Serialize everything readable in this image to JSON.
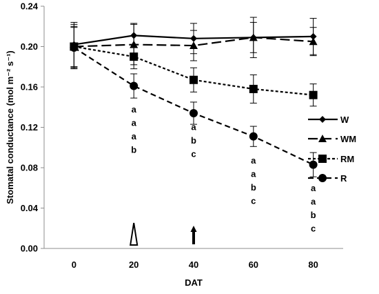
{
  "chart_data": {
    "type": "line",
    "xlabel": "DAT",
    "ylabel": "Stomatal conductance (mol m⁻² s⁻¹)",
    "x": [
      0,
      20,
      40,
      60,
      80
    ],
    "x_ticks": [
      "0",
      "20",
      "40",
      "60",
      "80"
    ],
    "xlim": [
      -10,
      90
    ],
    "ylim": [
      0,
      0.24
    ],
    "y_ticks": [
      "0.00",
      "0.04",
      "0.08",
      "0.12",
      "0.16",
      "0.20",
      "0.24"
    ],
    "grid": false,
    "legend_position": "right",
    "series": [
      {
        "name": "W",
        "marker": "diamond",
        "dash": "solid",
        "values": [
          0.202,
          0.211,
          0.208,
          0.209,
          0.21
        ],
        "errors": [
          0.022,
          0.012,
          0.015,
          0.02,
          0.018
        ]
      },
      {
        "name": "WM",
        "marker": "triangle",
        "dash": "long-dash",
        "values": [
          0.2,
          0.202,
          0.201,
          0.209,
          0.205
        ],
        "errors": [
          0.022,
          0.02,
          0.015,
          0.015,
          0.014
        ]
      },
      {
        "name": "RM",
        "marker": "square",
        "dash": "short-dash",
        "values": [
          0.2,
          0.19,
          0.167,
          0.158,
          0.152
        ],
        "errors": [
          0.02,
          0.012,
          0.012,
          0.014,
          0.011
        ]
      },
      {
        "name": "R",
        "marker": "circle",
        "dash": "dash",
        "values": [
          0.199,
          0.161,
          0.134,
          0.111,
          0.083
        ],
        "errors": [
          0.02,
          0.012,
          0.011,
          0.01,
          0.012
        ]
      }
    ],
    "annotations": [
      {
        "x": 20,
        "letters": [
          "a",
          "a",
          "a",
          "b"
        ]
      },
      {
        "x": 40,
        "letters": [
          "a",
          "a",
          "b",
          "c"
        ]
      },
      {
        "x": 60,
        "letters": [
          "a",
          "a",
          "b",
          "c"
        ]
      },
      {
        "x": 80,
        "letters": [
          "a",
          "a",
          "b",
          "c"
        ]
      }
    ],
    "arrows": [
      {
        "x": 20,
        "style": "open-triangle"
      },
      {
        "x": 40,
        "style": "filled-arrow"
      }
    ]
  }
}
